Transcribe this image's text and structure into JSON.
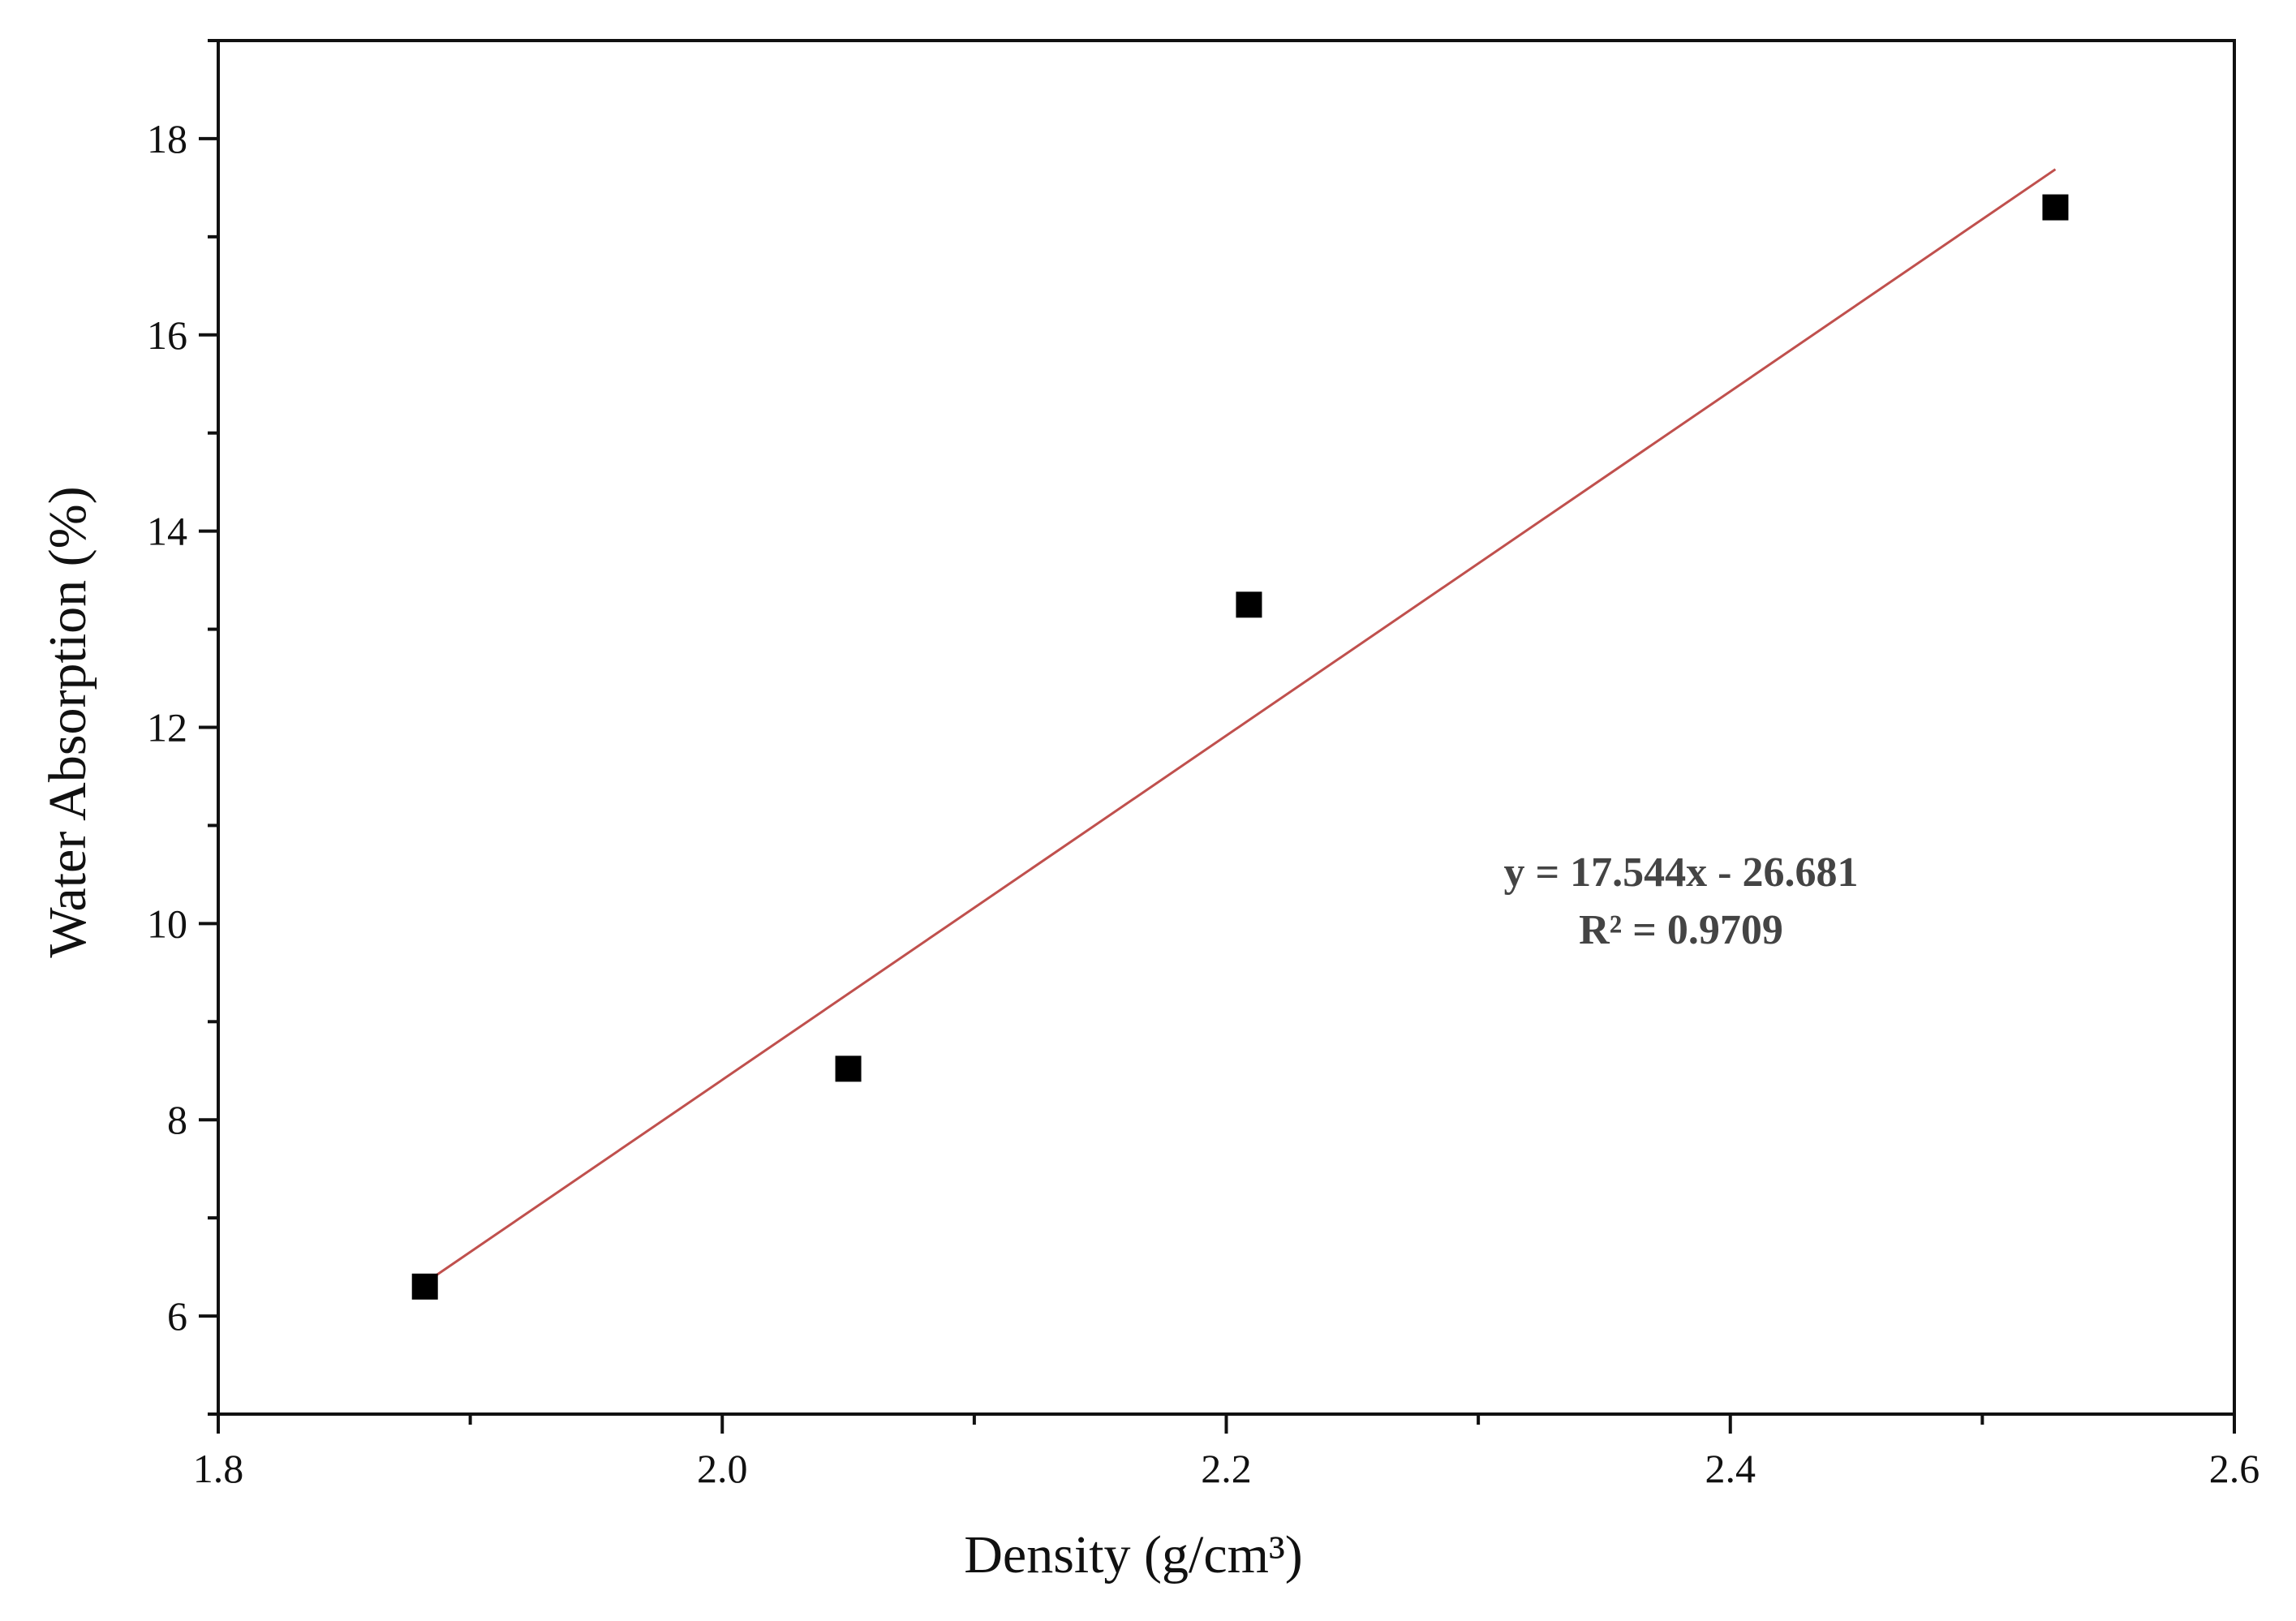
{
  "chart_data": {
    "type": "scatter",
    "xlabel": "Density (g/cm³)",
    "ylabel": "Water Absorption (%)",
    "xlim": [
      1.8,
      2.6
    ],
    "ylim": [
      5,
      19
    ],
    "x_ticks": [
      1.8,
      2.0,
      2.2,
      2.4,
      2.6
    ],
    "x_tick_labels": [
      "1.8",
      "2.0",
      "2.2",
      "2.4",
      "2.6"
    ],
    "y_ticks": [
      6,
      8,
      10,
      12,
      14,
      16,
      18
    ],
    "y_tick_labels": [
      "6",
      "8",
      "10",
      "12",
      "14",
      "16",
      "18"
    ],
    "grid": false,
    "legend": "none",
    "series": [
      {
        "marker": "square",
        "color": "#000000",
        "points": [
          {
            "x": 1.882,
            "y": 6.3
          },
          {
            "x": 2.05,
            "y": 8.52
          },
          {
            "x": 2.209,
            "y": 13.25
          },
          {
            "x": 2.529,
            "y": 17.3
          }
        ]
      }
    ],
    "trendline": {
      "type": "linear",
      "slope": 17.544,
      "intercept": -26.681,
      "x_range": [
        1.882,
        2.529
      ],
      "color": "#c0504d"
    },
    "annotations": {
      "equation": "y = 17.544x - 26.681",
      "r_squared": "R² = 0.9709"
    }
  }
}
